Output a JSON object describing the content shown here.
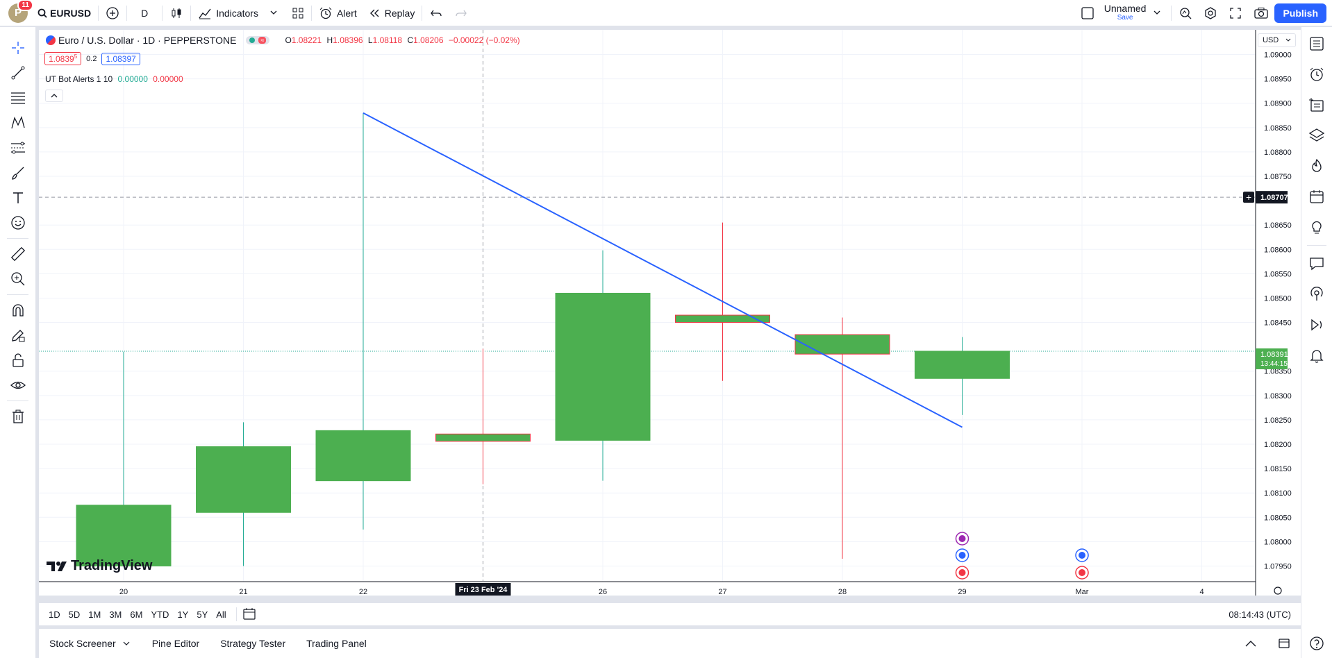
{
  "topbar": {
    "avatar_letter": "P",
    "notification_count": "11",
    "symbol": "EURUSD",
    "interval": "D",
    "indicators_label": "Indicators",
    "alert_label": "Alert",
    "replay_label": "Replay",
    "layout_name": "Unnamed",
    "save_label": "Save",
    "publish_label": "Publish"
  },
  "legend": {
    "title": "Euro / U.S. Dollar · 1D · PEPPERSTONE",
    "open_label": "O",
    "open": "1.08221",
    "high_label": "H",
    "high": "1.08396",
    "low_label": "L",
    "low": "1.08118",
    "close_label": "C",
    "close": "1.08206",
    "change": "−0.00022 (−0.02%)",
    "bid": "1.0839",
    "bid_sup": "5",
    "spread": "0.2",
    "ask": "1.08397",
    "indicator": "UT Bot Alerts 1 10",
    "indicator_v1": "0.00000",
    "indicator_v2": "0.00000"
  },
  "price_axis": {
    "currency": "USD",
    "ticks": [
      "1.09000",
      "1.08950",
      "1.08900",
      "1.08850",
      "1.08800",
      "1.08750",
      "1.08650",
      "1.08600",
      "1.08550",
      "1.08500",
      "1.08450",
      "1.08350",
      "1.08300",
      "1.08250",
      "1.08200",
      "1.08150",
      "1.08100",
      "1.08050",
      "1.08000",
      "1.07950"
    ],
    "crosshair_price": "1.08707",
    "last_price": "1.08391",
    "countdown": "13:44:15"
  },
  "time_axis": {
    "ticks": [
      "20",
      "21",
      "22",
      "26",
      "27",
      "28",
      "29",
      "Mar",
      "4"
    ],
    "crosshair_label": "Fri 23 Feb '24"
  },
  "watermark": "TradingView",
  "ranges": [
    "1D",
    "5D",
    "1M",
    "3M",
    "6M",
    "YTD",
    "1Y",
    "5Y",
    "All"
  ],
  "clock": "08:14:43 (UTC)",
  "bottom_tabs": [
    "Stock Screener",
    "Pine Editor",
    "Strategy Tester",
    "Trading Panel"
  ],
  "colors": {
    "up": "#4caf50",
    "down": "#f23645",
    "accent": "#2962ff",
    "trendline": "#2962ff"
  },
  "chart_data": {
    "type": "candlestick",
    "categories": [
      "20",
      "21",
      "22",
      "23",
      "26",
      "27",
      "28",
      "29"
    ],
    "ohlc": [
      {
        "date": "20",
        "open": 1.0795,
        "high": 1.0839,
        "low": 1.0795,
        "close": 1.08075
      },
      {
        "date": "21",
        "open": 1.0806,
        "high": 1.08245,
        "low": 1.0795,
        "close": 1.08195
      },
      {
        "date": "22",
        "open": 1.08125,
        "high": 1.0888,
        "low": 1.08025,
        "close": 1.08228
      },
      {
        "date": "23",
        "open": 1.08221,
        "high": 1.08396,
        "low": 1.08118,
        "close": 1.08206
      },
      {
        "date": "26",
        "open": 1.08208,
        "high": 1.08598,
        "low": 1.08125,
        "close": 1.0851
      },
      {
        "date": "27",
        "open": 1.08465,
        "high": 1.08655,
        "low": 1.0833,
        "close": 1.0845
      },
      {
        "date": "28",
        "open": 1.08425,
        "high": 1.0846,
        "low": 1.07965,
        "close": 1.08385
      },
      {
        "date": "29",
        "open": 1.08335,
        "high": 1.0842,
        "low": 1.0826,
        "close": 1.08391
      }
    ],
    "trendline": {
      "from": {
        "date": "22",
        "price": 1.0888
      },
      "to": {
        "date": "29",
        "price": 1.08235
      }
    },
    "crosshair": {
      "date": "23",
      "price": 1.08707
    },
    "ylim": [
      1.07935,
      1.09025
    ]
  }
}
